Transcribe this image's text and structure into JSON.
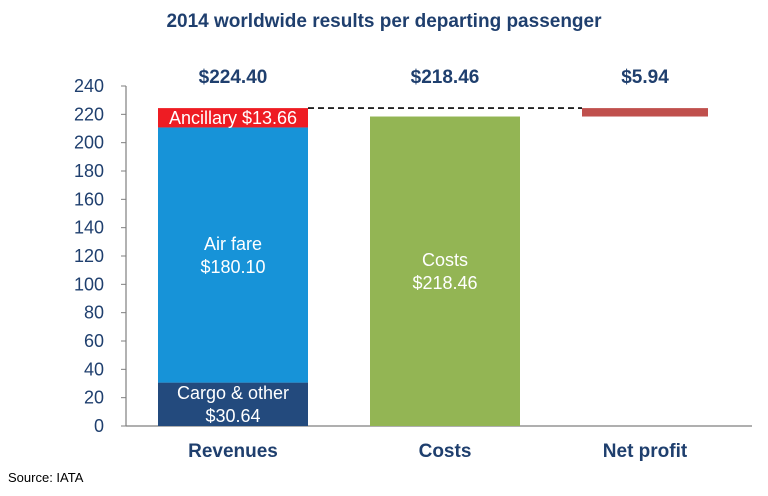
{
  "chart_data": {
    "type": "bar",
    "stacked": true,
    "title": "2014 worldwide results per departing passenger",
    "categories": [
      "Revenues",
      "Costs",
      "Net profit"
    ],
    "ylim": [
      0,
      240
    ],
    "yticks": [
      0,
      20,
      40,
      60,
      80,
      100,
      120,
      140,
      160,
      180,
      200,
      220,
      240
    ],
    "grid": false,
    "totals": [
      "$224.40",
      "$218.46",
      "$5.94"
    ],
    "stacks": [
      {
        "category": "Revenues",
        "segments": [
          {
            "label_lines": [
              "Cargo & other",
              "$30.64"
            ],
            "value": 30.64,
            "color": "#234a7d"
          },
          {
            "label_lines": [
              "Air fare",
              "$180.10"
            ],
            "value": 180.1,
            "color": "#1793d8"
          },
          {
            "label_lines": [
              "Ancillary $13.66"
            ],
            "value": 13.66,
            "color": "#ee1c23"
          }
        ]
      },
      {
        "category": "Costs",
        "segments": [
          {
            "label_lines": [
              "Costs",
              "$218.46"
            ],
            "value": 218.46,
            "color": "#93b554"
          }
        ]
      },
      {
        "category": "Net profit",
        "segments": [
          {
            "label_lines": [],
            "value": 5.94,
            "color": "#c0504d",
            "base": 218.46
          }
        ]
      }
    ],
    "connector_value": 224.4,
    "connector_color": "#000000"
  },
  "footer": {
    "source": "Source: IATA"
  }
}
